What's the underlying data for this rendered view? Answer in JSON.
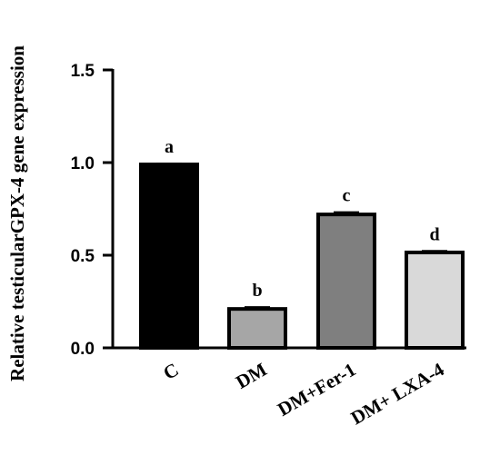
{
  "chart_data": {
    "type": "bar",
    "title": "",
    "xlabel": "",
    "ylabel": "Relative testicularGPX-4 gene expression",
    "ylim": [
      0,
      1.5
    ],
    "yticks": [
      "0.0",
      "0.5",
      "1.0",
      "1.5"
    ],
    "categories": [
      "C",
      "DM",
      "DM+Fer-1",
      "DM+ LXA-4"
    ],
    "values": [
      0.99,
      0.21,
      0.72,
      0.515
    ],
    "errors": [
      0.005,
      0.01,
      0.012,
      0.008
    ],
    "significance": [
      "a",
      "b",
      "c",
      "d"
    ],
    "colors": [
      "#000000",
      "#a6a6a6",
      "#7f7f7f",
      "#d9d9d9"
    ],
    "grid": false
  }
}
